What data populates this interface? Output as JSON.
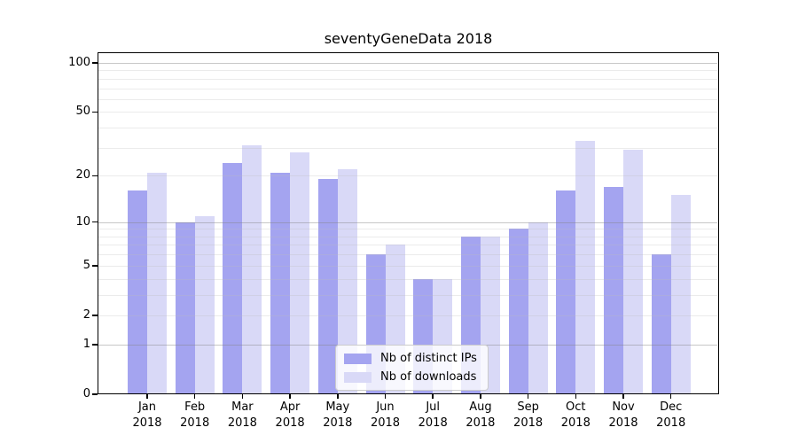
{
  "title": "seventyGeneData 2018",
  "chart_data": {
    "type": "bar",
    "title": "seventyGeneData 2018",
    "categories": [
      "Jan",
      "Feb",
      "Mar",
      "Apr",
      "May",
      "Jun",
      "Jul",
      "Aug",
      "Sep",
      "Oct",
      "Nov",
      "Dec"
    ],
    "category_year_label": "2018",
    "series": [
      {
        "name": "Nb of distinct IPs",
        "color": "#a4a4f0",
        "values": [
          16,
          10,
          24,
          21,
          19,
          6,
          4,
          8,
          9,
          16,
          17,
          6
        ]
      },
      {
        "name": "Nb of downloads",
        "color": "#d9d9f7",
        "values": [
          21,
          11,
          31,
          28,
          22,
          7,
          4,
          8,
          10,
          33,
          29,
          15
        ]
      }
    ],
    "y_axis": {
      "scale": "log1p",
      "ticks": [
        0,
        1,
        2,
        5,
        10,
        20,
        50,
        100
      ],
      "major_gridlines": [
        1,
        10,
        100
      ],
      "minor_gridlines": [
        2,
        3,
        4,
        5,
        6,
        7,
        8,
        9,
        20,
        30,
        40,
        50,
        60,
        70,
        80,
        90
      ],
      "ylim": [
        0,
        116
      ]
    },
    "grid": "on",
    "legend_position": "lower-center",
    "xlabel": "",
    "ylabel": ""
  }
}
